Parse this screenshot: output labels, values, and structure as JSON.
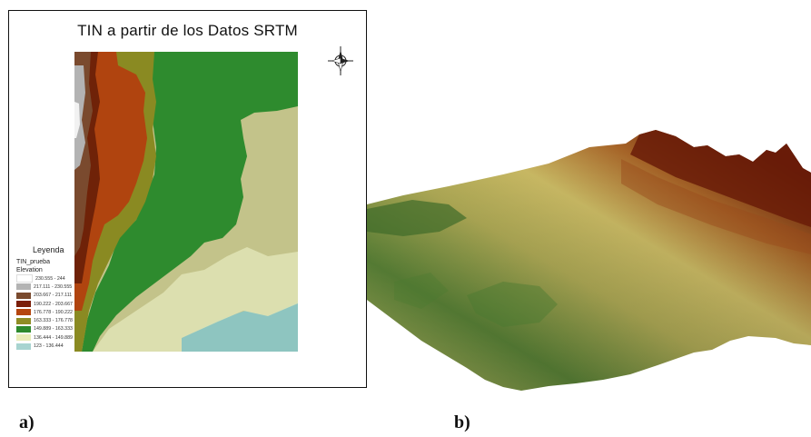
{
  "panel_a": {
    "title": "TIN a partir de los Datos SRTM",
    "caption": "a)",
    "legend": {
      "title": "Leyenda",
      "layer": "TIN_prueba",
      "field": "Elevation",
      "classes": [
        {
          "label": "230.555 - 244",
          "color": "#ffffff"
        },
        {
          "label": "217.111 - 230.555",
          "color": "#b3b3b3"
        },
        {
          "label": "203.667 - 217.111",
          "color": "#7a4a2e"
        },
        {
          "label": "190.222 - 203.667",
          "color": "#7a1e08"
        },
        {
          "label": "176.778 - 190.222",
          "color": "#b5460f"
        },
        {
          "label": "163.333 - 176.778",
          "color": "#8f8d25"
        },
        {
          "label": "149.889 - 163.333",
          "color": "#2d8a2d"
        },
        {
          "label": "136.444 - 149.889",
          "color": "#e9ecb8"
        },
        {
          "label": "123 - 136.444",
          "color": "#a8d4d0"
        }
      ]
    },
    "north_arrow_icon": "compass-rose-icon"
  },
  "panel_b": {
    "caption": "b)",
    "description_colors": {
      "low": "#2f6b2a",
      "mid": "#c9c268",
      "high": "#6a1c08"
    }
  }
}
